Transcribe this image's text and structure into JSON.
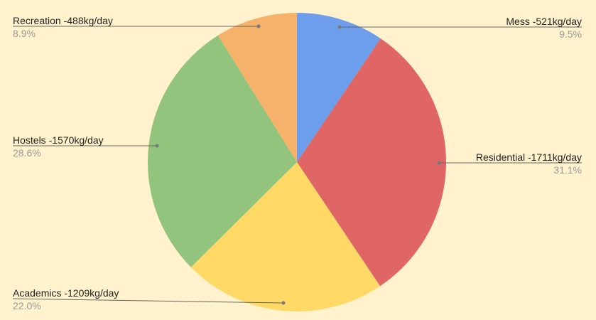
{
  "chart_data": {
    "type": "pie",
    "start_angle": "top",
    "direction": "clockwise",
    "slices": [
      {
        "label": "Mess -521kg/day",
        "value": 521,
        "percent": "9.5%",
        "color": "#6d9eeb"
      },
      {
        "label": "Residential -1711kg/day",
        "value": 1711,
        "percent": "31.1%",
        "color": "#e06666"
      },
      {
        "label": "Academics -1209kg/day",
        "value": 1209,
        "percent": "22.0%",
        "color": "#ffd966"
      },
      {
        "label": "Hostels -1570kg/day",
        "value": 1570,
        "percent": "28.6%",
        "color": "#93c47d"
      },
      {
        "label": "Recreation -488kg/day",
        "value": 488,
        "percent": "8.9%",
        "color": "#f6b26b"
      }
    ],
    "background": "#fff2cc",
    "legend": "none"
  }
}
